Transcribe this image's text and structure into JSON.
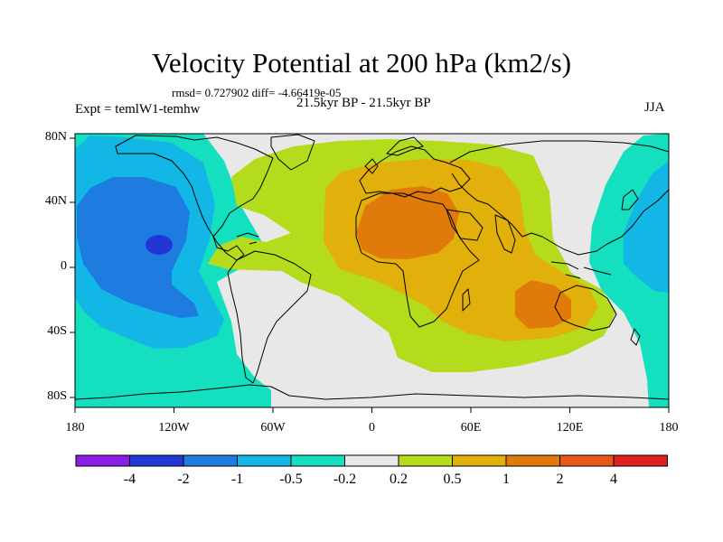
{
  "title": "Velocity Potential at 200 hPa (km2/s)",
  "stats": "rmsd= 0.727902 diff= -4.66419e-05",
  "expt": "Expt = temlW1-temhw",
  "period": "21.5kyr BP - 21.5kyr BP",
  "season": "JJA",
  "lat_labels": [
    "80N",
    "40N",
    "0",
    "40S",
    "80S"
  ],
  "lon_labels": [
    "180",
    "120W",
    "60W",
    "0",
    "60E",
    "120E",
    "180"
  ],
  "colorbar": {
    "labels": [
      "-4",
      "-2",
      "-1",
      "-0.5",
      "-0.2",
      "0.2",
      "0.5",
      "1",
      "2",
      "4"
    ],
    "colors": [
      "#8a1ee6",
      "#2236d6",
      "#1e7be0",
      "#13b7e6",
      "#14e0c0",
      "#e8e8e8",
      "#b4dc1c",
      "#e2b00a",
      "#e07a0a",
      "#e8581a",
      "#e02020"
    ]
  }
}
